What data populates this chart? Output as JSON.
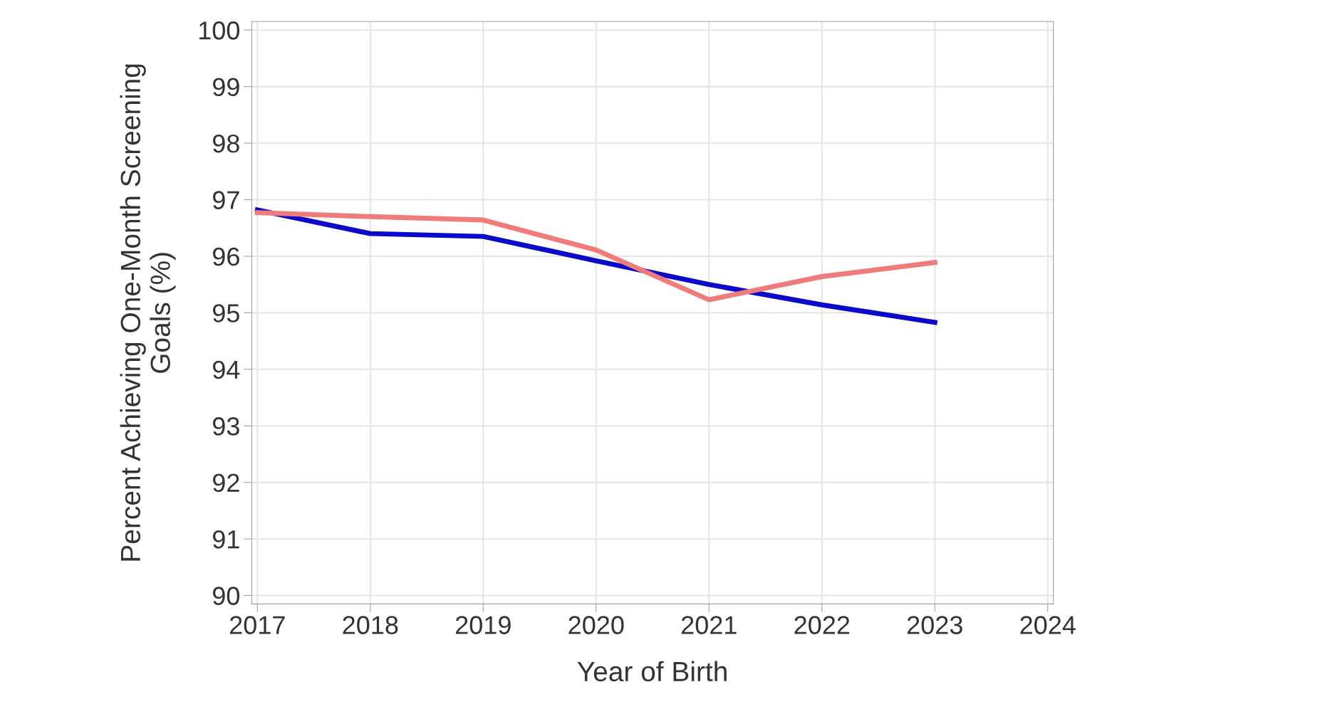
{
  "chart_data": {
    "type": "line",
    "xlabel": "Year of Birth",
    "ylabel": "Percent Achieving One-Month Screening\nGoals (%)",
    "x": [
      2017,
      2018,
      2019,
      2020,
      2021,
      2022,
      2023
    ],
    "series": [
      {
        "color": "#0a0ac8",
        "values": [
          96.82,
          96.4,
          96.35,
          95.92,
          95.5,
          95.14,
          94.83
        ]
      },
      {
        "color": "#f07b7b",
        "values": [
          96.77,
          96.7,
          96.64,
          96.11,
          95.23,
          95.64,
          95.89
        ]
      }
    ],
    "xlim": [
      2016.95,
      2024.05
    ],
    "xticks": [
      2017,
      2018,
      2019,
      2020,
      2021,
      2022,
      2023,
      2024
    ],
    "ylim": [
      89.85,
      100.15
    ],
    "yticks": [
      90,
      91,
      92,
      93,
      94,
      95,
      96,
      97,
      98,
      99,
      100
    ],
    "grid": true,
    "legend": false,
    "marker": "none",
    "line_style": "solid"
  }
}
